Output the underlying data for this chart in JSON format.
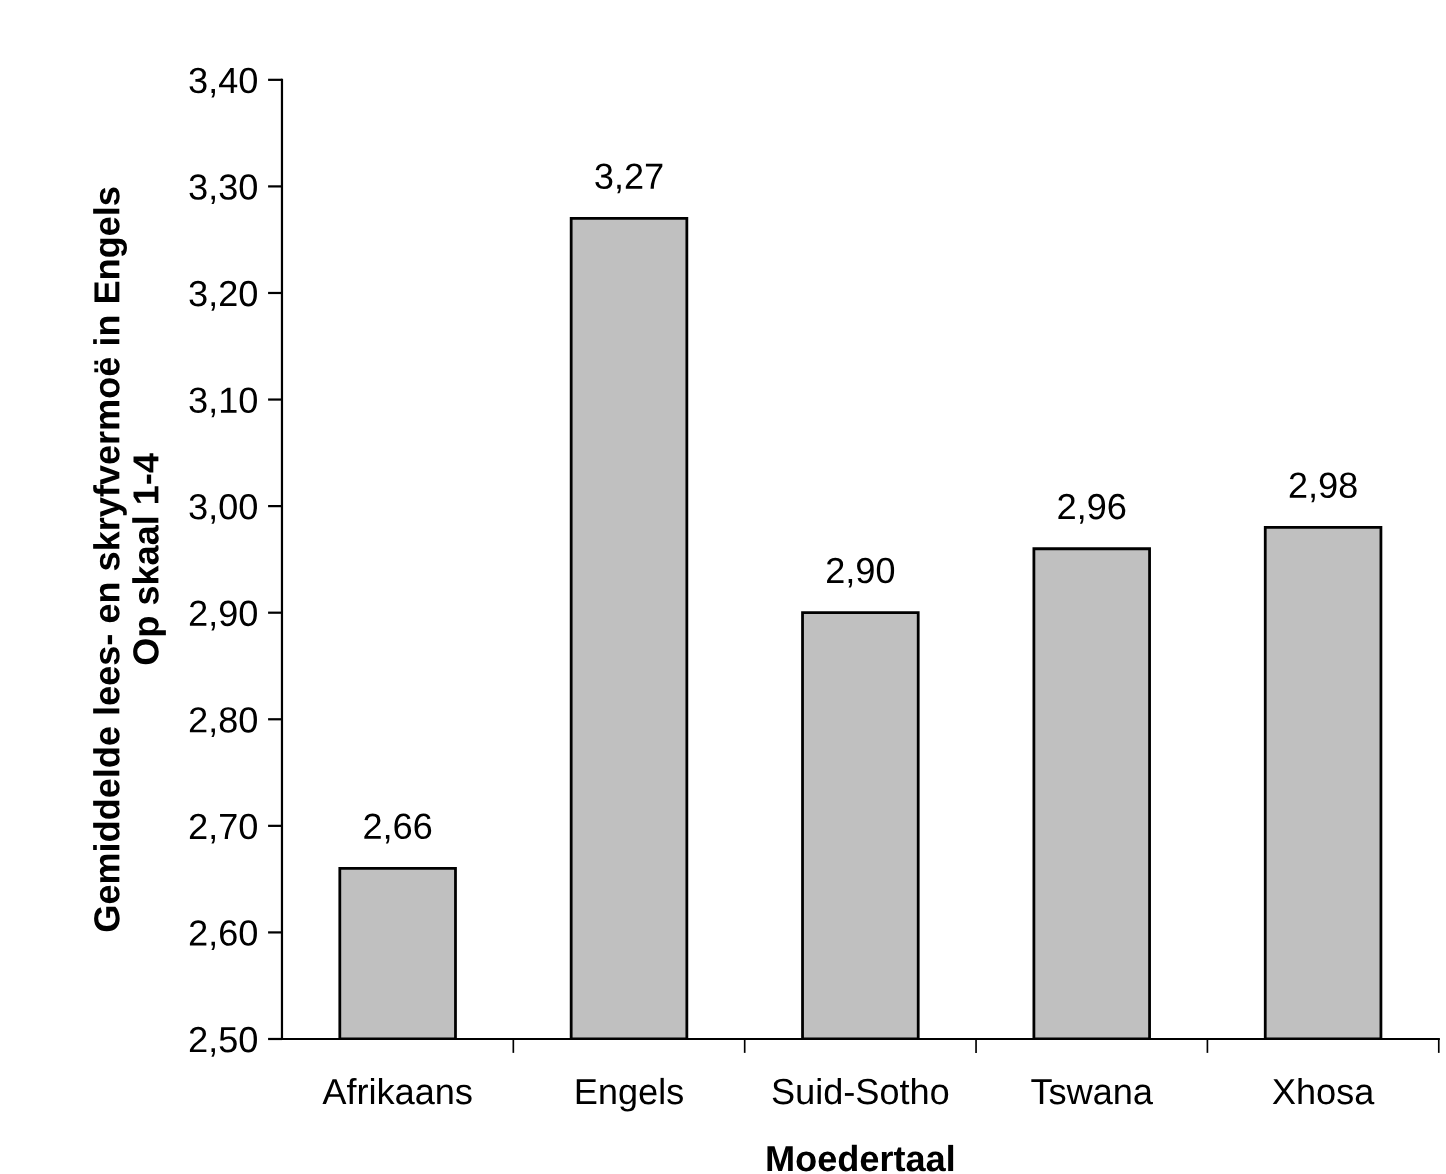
{
  "chart_data": {
    "type": "bar",
    "xlabel": "Moedertaal",
    "ylabel": "Gemiddelde lees- en skryfvermoë in Engels\nOp skaal 1-4",
    "categories": [
      "Afrikaans",
      "Engels",
      "Suid-Sotho",
      "Tswana",
      "Xhosa"
    ],
    "values": [
      2.66,
      3.27,
      2.9,
      2.96,
      2.98
    ],
    "value_labels": [
      "2,66",
      "3,27",
      "2,90",
      "2,96",
      "2,98"
    ],
    "color": "#c0c0c0",
    "ylim": [
      2.5,
      3.4
    ],
    "yticks": [
      {
        "value": 2.5,
        "label": "2,50"
      },
      {
        "value": 2.6,
        "label": "2,60"
      },
      {
        "value": 2.7,
        "label": "2,70"
      },
      {
        "value": 2.8,
        "label": "2,80"
      },
      {
        "value": 2.9,
        "label": "2,90"
      },
      {
        "value": 3.0,
        "label": "3,00"
      },
      {
        "value": 3.1,
        "label": "3,10"
      },
      {
        "value": 3.2,
        "label": "3,20"
      },
      {
        "value": 3.3,
        "label": "3,30"
      },
      {
        "value": 3.4,
        "label": "3,40"
      }
    ],
    "grid": false
  }
}
